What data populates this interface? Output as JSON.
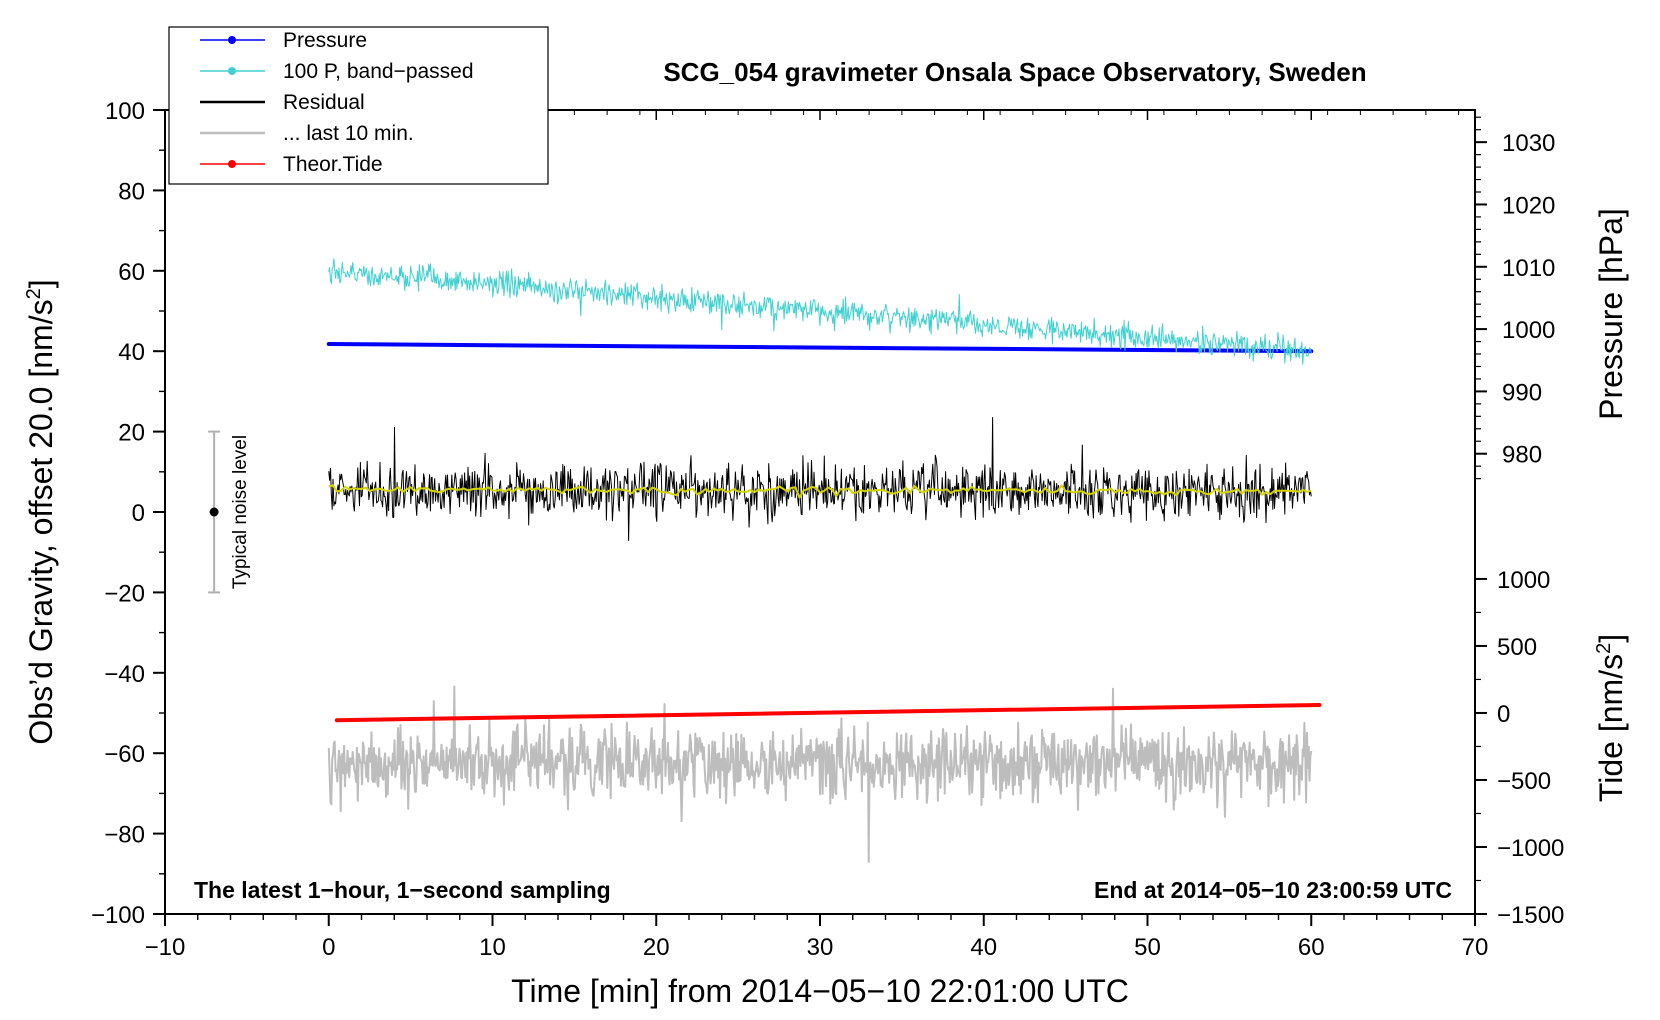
{
  "chart_data": {
    "type": "line",
    "title": "SCG_054 gravimeter Onsala Space Observatory, Sweden",
    "xlabel": "Time [min] from 2014−05−10 22:01:00 UTC",
    "ylabel_main": "Obs’d Gravity, offset 20.0 [nm/s",
    "ylabel_main_sup": "2",
    "ylabel_main_end": "]",
    "ylabel_pressure": "Pressure [hPa]",
    "ylabel_tide": "Tide [nm/s",
    "ylabel_tide_sup": "2",
    "ylabel_tide_end": "]",
    "xlim": [
      -10,
      70
    ],
    "ylim": [
      -100,
      100
    ],
    "x_ticks": [
      -10,
      0,
      10,
      20,
      30,
      40,
      50,
      60,
      70
    ],
    "x_tick_labels": [
      "−10",
      "0",
      "10",
      "20",
      "30",
      "40",
      "50",
      "60",
      "70"
    ],
    "y_ticks": [
      -100,
      -80,
      -60,
      -40,
      -20,
      0,
      20,
      40,
      60,
      80,
      100
    ],
    "y_tick_labels": [
      "−100",
      "−80",
      "−60",
      "−40",
      "−20",
      "0",
      "20",
      "40",
      "60",
      "80",
      "100"
    ],
    "pressure_axis": {
      "ticks": [
        980,
        990,
        1000,
        1010,
        1020,
        1030
      ],
      "tick_labels": [
        "980",
        "990",
        "1000",
        "1010",
        "1020",
        "1030"
      ],
      "anchor_value": 1030,
      "anchor_y": 92,
      "per_10": 15.5
    },
    "tide_axis": {
      "ticks": [
        -1500,
        -1000,
        -500,
        0,
        500,
        1000
      ],
      "tick_labels": [
        "−1500",
        "−1000",
        "−500",
        "0",
        "500",
        "1000"
      ],
      "anchor_value": -1500,
      "anchor_y": -100,
      "per_500": 16.67
    },
    "series": [
      {
        "name": "Pressure",
        "color": "#0000ff",
        "x": [
          0,
          60
        ],
        "y": [
          41.8,
          40.0
        ],
        "style": "thick"
      },
      {
        "name": "100 P, band−passed",
        "color": "#40d0d0",
        "x": [
          0,
          60
        ],
        "y": [
          60,
          40
        ],
        "noise": 2.2,
        "style": "thin"
      },
      {
        "name": "Residual",
        "color": "#000000",
        "x": [
          0,
          60
        ],
        "y": [
          5.5,
          5.0
        ],
        "noise": 4.5,
        "style": "thin"
      },
      {
        "name": "Residual smoothed",
        "color": "#d4d400",
        "x": [
          0,
          60
        ],
        "y": [
          5.6,
          5.1
        ],
        "noise": 0.6,
        "style": "mid"
      },
      {
        "name": "... last 10 min.",
        "color": "#bdbdbd",
        "x": [
          0,
          60
        ],
        "y": [
          -62.5,
          -62.5
        ],
        "noise": 6,
        "style": "mid"
      },
      {
        "name": "Theor.Tide",
        "color": "#ff0000",
        "x": [
          0.5,
          60.5
        ],
        "y": [
          -51.8,
          -48.0
        ],
        "style": "thick"
      }
    ],
    "noise_bar": {
      "x": -7,
      "y": 0,
      "ylow": -20,
      "yhigh": 20,
      "label": "Typical noise level"
    },
    "annotations": {
      "bottom_left": "The latest 1−hour, 1−second sampling",
      "bottom_right": "End at 2014−05−10 23:00:59 UTC"
    },
    "legend": {
      "placement": "top-left",
      "entries": [
        {
          "label": "Pressure",
          "color": "#0000ff",
          "marker": true
        },
        {
          "label": "100 P, band−passed",
          "color": "#40d0d0",
          "marker": true
        },
        {
          "label": "Residual",
          "color": "#000000",
          "marker": false
        },
        {
          "label": "... last 10 min.",
          "color": "#bdbdbd",
          "marker": false
        },
        {
          "label": "Theor.Tide",
          "color": "#ff0000",
          "marker": true
        }
      ]
    }
  }
}
